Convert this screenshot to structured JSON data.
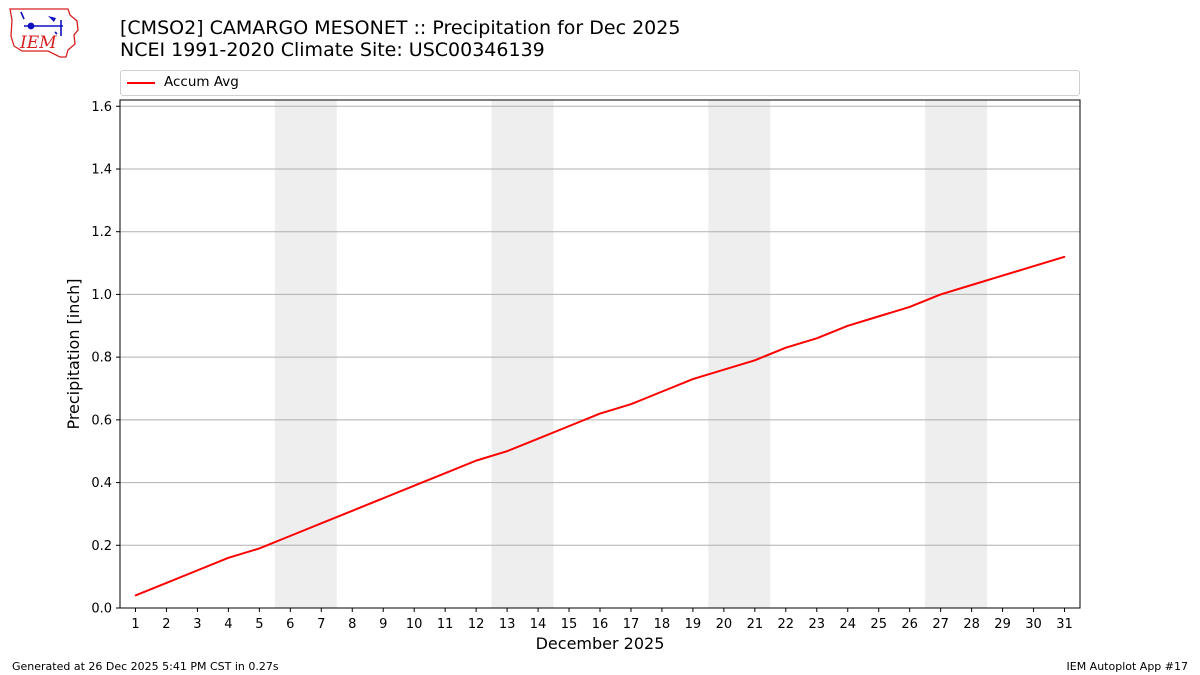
{
  "title_line1": "[CMSO2] CAMARGO MESONET :: Precipitation for Dec 2025",
  "title_line2": "NCEI 1991-2020 Climate Site: USC00346139",
  "logo_text": "IEM",
  "footer_left": "Generated at 26 Dec 2025 5:41 PM CST in 0.27s",
  "footer_right": "IEM Autoplot App #17",
  "colors": {
    "line": "#ff0000",
    "weekend_band": "#eeeeee",
    "grid": "#b0b0b0",
    "logo_red": "#d62020",
    "logo_blue": "#1010c0"
  },
  "chart_data": {
    "type": "line",
    "title": "[CMSO2] CAMARGO MESONET :: Precipitation for Dec 2025",
    "subtitle": "NCEI 1991-2020 Climate Site: USC00346139",
    "xlabel": "December 2025",
    "ylabel": "Precipitation [inch]",
    "xlim": [
      0.5,
      31.5
    ],
    "ylim": [
      0,
      1.62
    ],
    "x": [
      1,
      2,
      3,
      4,
      5,
      6,
      7,
      8,
      9,
      10,
      11,
      12,
      13,
      14,
      15,
      16,
      17,
      18,
      19,
      20,
      21,
      22,
      23,
      24,
      25,
      26,
      27,
      28,
      29,
      30,
      31
    ],
    "xticks": [
      "1",
      "2",
      "3",
      "4",
      "5",
      "6",
      "7",
      "8",
      "9",
      "10",
      "11",
      "12",
      "13",
      "14",
      "15",
      "16",
      "17",
      "18",
      "19",
      "20",
      "21",
      "22",
      "23",
      "24",
      "25",
      "26",
      "27",
      "28",
      "29",
      "30",
      "31"
    ],
    "yticks": [
      "0.0",
      "0.2",
      "0.4",
      "0.6",
      "0.8",
      "1.0",
      "1.2",
      "1.4",
      "1.6"
    ],
    "ytick_values": [
      0,
      0.2,
      0.4,
      0.6,
      0.8,
      1.0,
      1.2,
      1.4,
      1.6
    ],
    "grid": "horizontal",
    "legend": {
      "placement": "top",
      "entries": [
        "Accum Avg"
      ]
    },
    "weekend_bands": [
      [
        5.5,
        7.5
      ],
      [
        12.5,
        14.5
      ],
      [
        19.5,
        21.5
      ],
      [
        26.5,
        28.5
      ]
    ],
    "series": [
      {
        "name": "Accum Avg",
        "color": "#ff0000",
        "values": [
          0.04,
          0.08,
          0.12,
          0.16,
          0.19,
          0.23,
          0.27,
          0.31,
          0.35,
          0.39,
          0.43,
          0.47,
          0.5,
          0.54,
          0.58,
          0.62,
          0.65,
          0.69,
          0.73,
          0.76,
          0.79,
          0.83,
          0.86,
          0.9,
          0.93,
          0.96,
          1.0,
          1.03,
          1.06,
          1.09,
          1.12
        ]
      }
    ]
  }
}
